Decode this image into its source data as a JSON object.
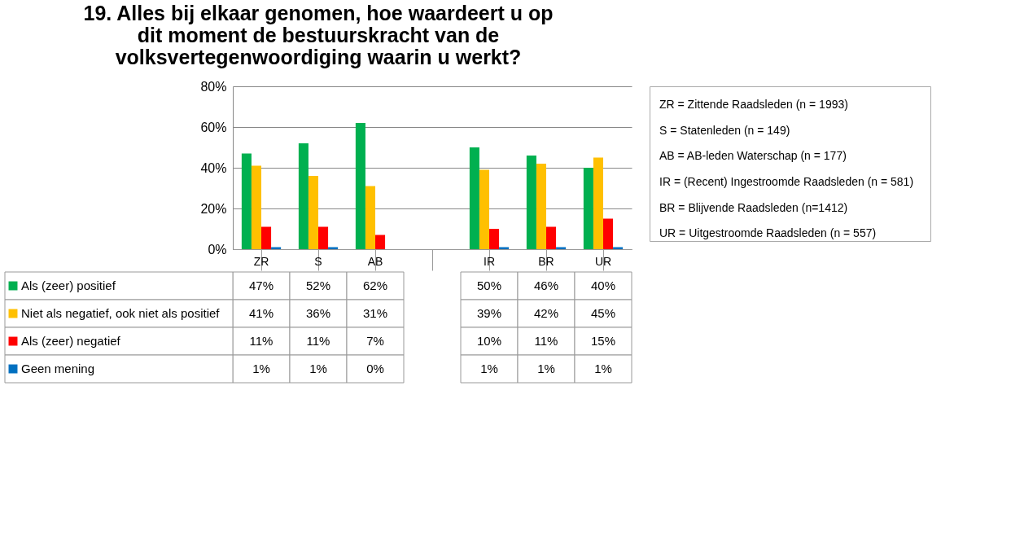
{
  "chart_data": {
    "type": "bar",
    "title": "19. Alles bij elkaar genomen, hoe waardeert u op dit moment de bestuurskracht van de volksvertegenwoordiging waarin u werkt?",
    "categories": [
      "ZR",
      "S",
      "AB",
      null,
      "IR",
      "BR",
      "UR"
    ],
    "series": [
      {
        "name": "Als (zeer) positief",
        "color": "#00b050",
        "values": [
          47,
          52,
          62,
          null,
          50,
          46,
          40
        ],
        "value_labels": [
          "47%",
          "52%",
          "62%",
          null,
          "50%",
          "46%",
          "40%"
        ]
      },
      {
        "name": "Niet als negatief, ook niet als positief",
        "color": "#ffc000",
        "values": [
          41,
          36,
          31,
          null,
          39,
          42,
          45
        ],
        "value_labels": [
          "41%",
          "36%",
          "31%",
          null,
          "39%",
          "42%",
          "45%"
        ]
      },
      {
        "name": "Als (zeer) negatief",
        "color": "#ff0000",
        "values": [
          11,
          11,
          7,
          null,
          10,
          11,
          15
        ],
        "value_labels": [
          "11%",
          "11%",
          "7%",
          null,
          "10%",
          "11%",
          "15%"
        ]
      },
      {
        "name": "Geen mening",
        "color": "#0070c0",
        "values": [
          1,
          1,
          0,
          null,
          1,
          1,
          1
        ],
        "value_labels": [
          "1%",
          "1%",
          "0%",
          null,
          "1%",
          "1%",
          "1%"
        ]
      }
    ],
    "ylim": [
      0,
      80
    ],
    "yticks": [
      {
        "value": 0,
        "label": "0%"
      },
      {
        "value": 20,
        "label": "20%"
      },
      {
        "value": 40,
        "label": "40%"
      },
      {
        "value": 60,
        "label": "60%"
      },
      {
        "value": 80,
        "label": "80%"
      }
    ],
    "grid": "y",
    "legend": "bottom",
    "annotations": [
      "ZR = Zittende Raadsleden (n = 1993)",
      "S = Statenleden  (n = 149)",
      "AB = AB-leden Waterschap (n =  177)",
      "IR = (Recent) Ingestroomde Raadsleden (n = 581)",
      "BR = Blijvende Raadsleden (n=1412)",
      "UR = Uitgestroomde Raadsleden (n = 557)"
    ]
  }
}
